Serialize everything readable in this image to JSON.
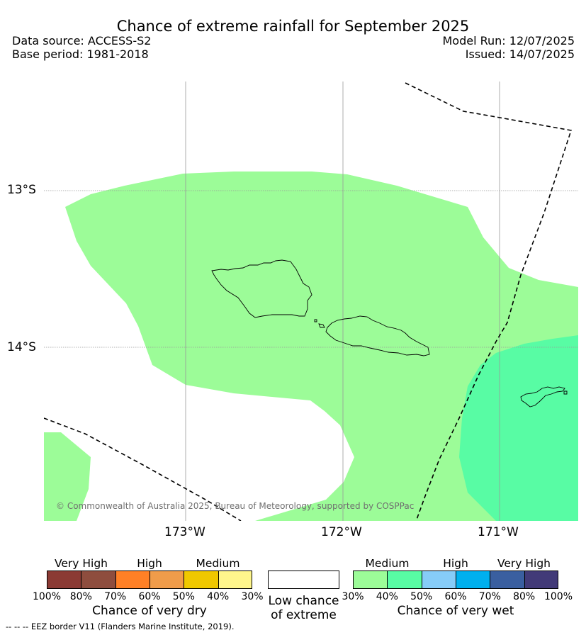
{
  "title": "Chance of extreme rainfall for September 2025",
  "header": {
    "data_source": "Data source: ACCESS-S2",
    "base_period": "Base period: 1981-2018",
    "model_run": "Model Run: 12/07/2025",
    "issued": "Issued: 14/07/2025"
  },
  "map": {
    "lat_labels": [
      "13°S",
      "14°S"
    ],
    "lon_labels": [
      "173°W",
      "172°W",
      "171°W"
    ],
    "copyright": "© Commonwealth of Australia 2025, Bureau of Meteorology, supported by COSPPac",
    "colors": {
      "medium_wet": "#9cfc98",
      "medium_wet_40": "#58fca4",
      "eez_border": "#000000",
      "coastline": "#000000",
      "gridline": "#999999"
    }
  },
  "legend": {
    "dry": {
      "headings": [
        "Very High",
        "High",
        "Medium"
      ],
      "ticks": [
        "100%",
        "80%",
        "70%",
        "60%",
        "50%",
        "40%",
        "30%"
      ],
      "label": "Chance of very dry",
      "colors": [
        "#8b3a34",
        "#8e4d3e",
        "#ff8026",
        "#f09c4a",
        "#f0c800",
        "#fff68c"
      ]
    },
    "neutral": {
      "label_line1": "Low chance",
      "label_line2": "of extreme",
      "color": "#ffffff"
    },
    "wet": {
      "headings": [
        "Medium",
        "High",
        "Very High"
      ],
      "ticks": [
        "30%",
        "40%",
        "50%",
        "60%",
        "70%",
        "80%",
        "100%"
      ],
      "label": "Chance of very wet",
      "colors": [
        "#9cfc98",
        "#58fca4",
        "#86ccf8",
        "#00b0ee",
        "#3a5fa0",
        "#423a78"
      ]
    }
  },
  "footer": {
    "eez_note": "--  --  -- EEZ border V11 (Flanders Marine Institute, 2019)."
  }
}
